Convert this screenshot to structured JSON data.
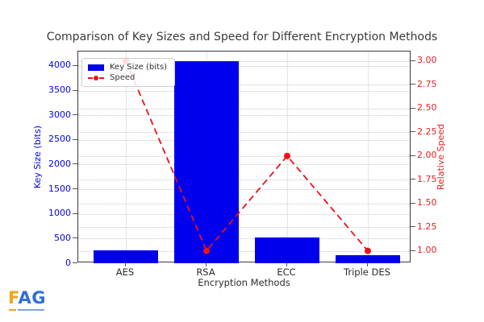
{
  "logo": {
    "letter_f": "F",
    "letters_ag": "AG",
    "f_color": "#F5A21B",
    "ag_color": "#2E6FD6",
    "tagline_colors": [
      "#F5A21B",
      "#7DA3E0"
    ]
  },
  "chart_data": {
    "type": "bar",
    "title": "Comparison of Key Sizes and Speed for Different Encryption Methods",
    "xlabel": "Encryption Methods",
    "ylabel_left": "Key Size (bits)",
    "ylabel_right": "Relative Speed",
    "categories": [
      "AES",
      "RSA",
      "ECC",
      "Triple DES"
    ],
    "series": [
      {
        "name": "Key Size (bits)",
        "type": "bar",
        "axis": "left",
        "color": "#0000EE",
        "values": [
          256,
          4096,
          521,
          168
        ]
      },
      {
        "name": "Speed",
        "type": "line",
        "axis": "right",
        "color": "#EE1111",
        "linestyle": "dashed",
        "marker": "circle",
        "values": [
          3.0,
          1.0,
          2.0,
          1.0
        ]
      }
    ],
    "yticks_left": [
      0,
      500,
      1000,
      1500,
      2000,
      2500,
      3000,
      3500,
      4000
    ],
    "yticks_right": [
      "1.00",
      "1.25",
      "1.50",
      "1.75",
      "2.00",
      "2.25",
      "2.50",
      "2.75",
      "3.00"
    ],
    "ylim_left": [
      0,
      4293
    ],
    "ylim_right": [
      0.87,
      3.1
    ],
    "grid": true,
    "legend_position": "upper-left",
    "colors": {
      "left_axis_text": "#0000EE",
      "right_axis_text": "#E32222",
      "grid": "#C9C9C9",
      "title_text": "#3A3A3A",
      "xtick_text": "#2B2B2B"
    }
  }
}
